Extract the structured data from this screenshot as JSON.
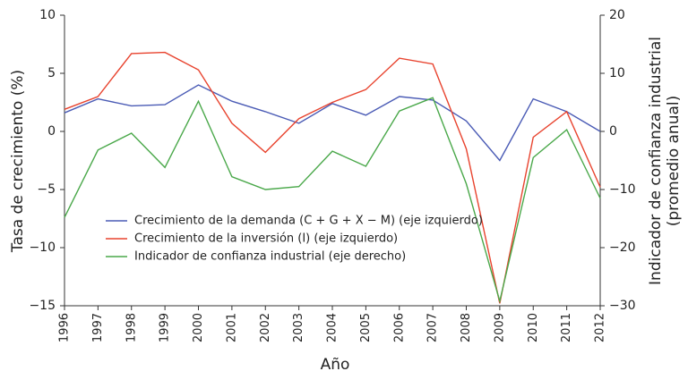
{
  "chart_data": {
    "type": "line",
    "x_label": "Año",
    "y_label": "Tasa de crecimiento (%)",
    "y2_label": [
      "Indicador de confianza industrial",
      "(promedio anual)"
    ],
    "categories": [
      "1996",
      "1997",
      "1998",
      "1999",
      "2000",
      "2001",
      "2002",
      "2003",
      "2004",
      "2005",
      "2006",
      "2007",
      "2008",
      "2009",
      "2010",
      "2011",
      "2012"
    ],
    "series": [
      {
        "name": "Crecimiento de la demanda (C + G + X − M) (eje izquierdo)",
        "color": "#4a5bb5",
        "values": [
          1.6,
          2.8,
          2.2,
          2.3,
          4.0,
          2.6,
          1.7,
          0.7,
          2.4,
          1.4,
          3.0,
          2.7,
          0.9,
          -2.5,
          2.8,
          1.7,
          0.0
        ]
      },
      {
        "name": "Crecimiento de la inversión (I) (eje izquierdo)",
        "color": "#e8432e",
        "values": [
          1.9,
          3.0,
          6.7,
          6.8,
          5.3,
          0.7,
          -1.8,
          1.1,
          2.5,
          3.6,
          6.3,
          5.8,
          -1.5,
          -14.8,
          -0.5,
          1.7,
          -4.8
        ]
      },
      {
        "name": "Indicador de confianza industrial (eje derecho)",
        "color": "#4aa84a",
        "axis": "y2",
        "values": [
          -14.8,
          -3.2,
          -0.3,
          -6.2,
          5.2,
          -7.8,
          -10,
          -9.5,
          -3.4,
          -6,
          3.5,
          5.8,
          -9,
          -29.2,
          -4.5,
          0.3,
          -11.5
        ]
      }
    ],
    "ylim": [
      -15,
      10
    ],
    "yticks": [
      {
        "value": -15,
        "label": "−15"
      },
      {
        "value": -10,
        "label": "−10"
      },
      {
        "value": -5,
        "label": "−5"
      },
      0,
      5,
      10
    ],
    "y2lim": [
      -30,
      20
    ],
    "y2ticks": [
      {
        "value": -30,
        "label": "−30"
      },
      {
        "value": -20,
        "label": "−20"
      },
      {
        "value": -10,
        "label": "−10"
      },
      0,
      10,
      20
    ],
    "legend": "lower-left"
  }
}
